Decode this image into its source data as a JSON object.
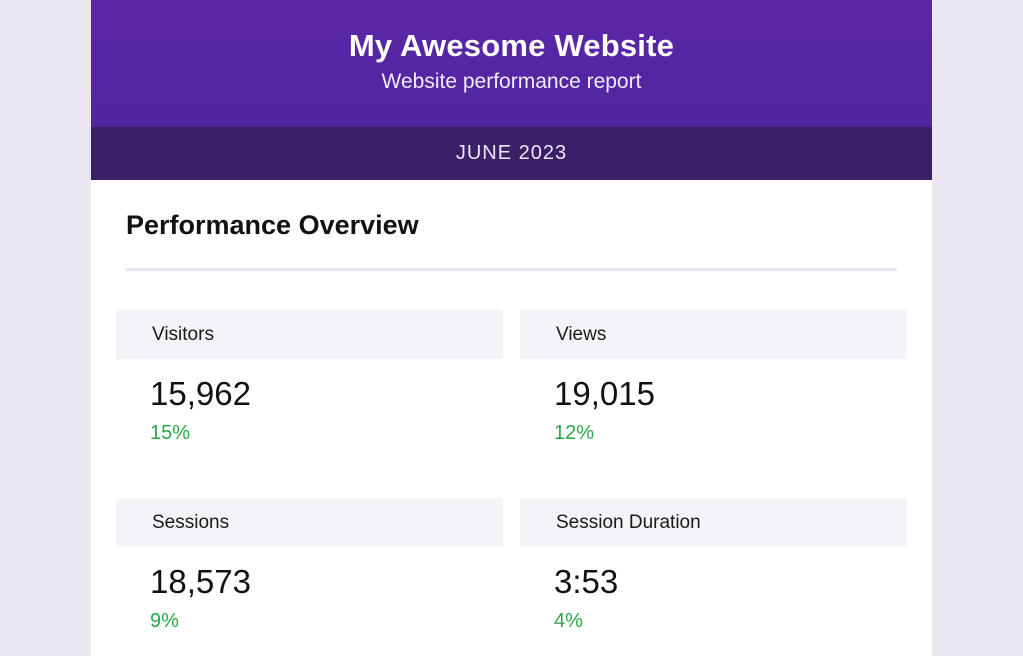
{
  "header": {
    "title": "My Awesome Website",
    "subtitle": "Website performance report",
    "month": "JUNE 2023"
  },
  "overview": {
    "title": "Performance Overview",
    "metrics": [
      {
        "label": "Visitors",
        "value": "15,962",
        "change": "15%"
      },
      {
        "label": "Views",
        "value": "19,015",
        "change": "12%"
      },
      {
        "label": "Sessions",
        "value": "18,573",
        "change": "9%"
      },
      {
        "label": "Session Duration",
        "value": "3:53",
        "change": "4%"
      }
    ]
  },
  "colors": {
    "header_bg": "#5226a2",
    "month_bar_bg": "#3b2067",
    "positive_change": "#2aa84a",
    "page_bg": "#eae7f1",
    "card_label_bg": "#f4f3f8"
  }
}
